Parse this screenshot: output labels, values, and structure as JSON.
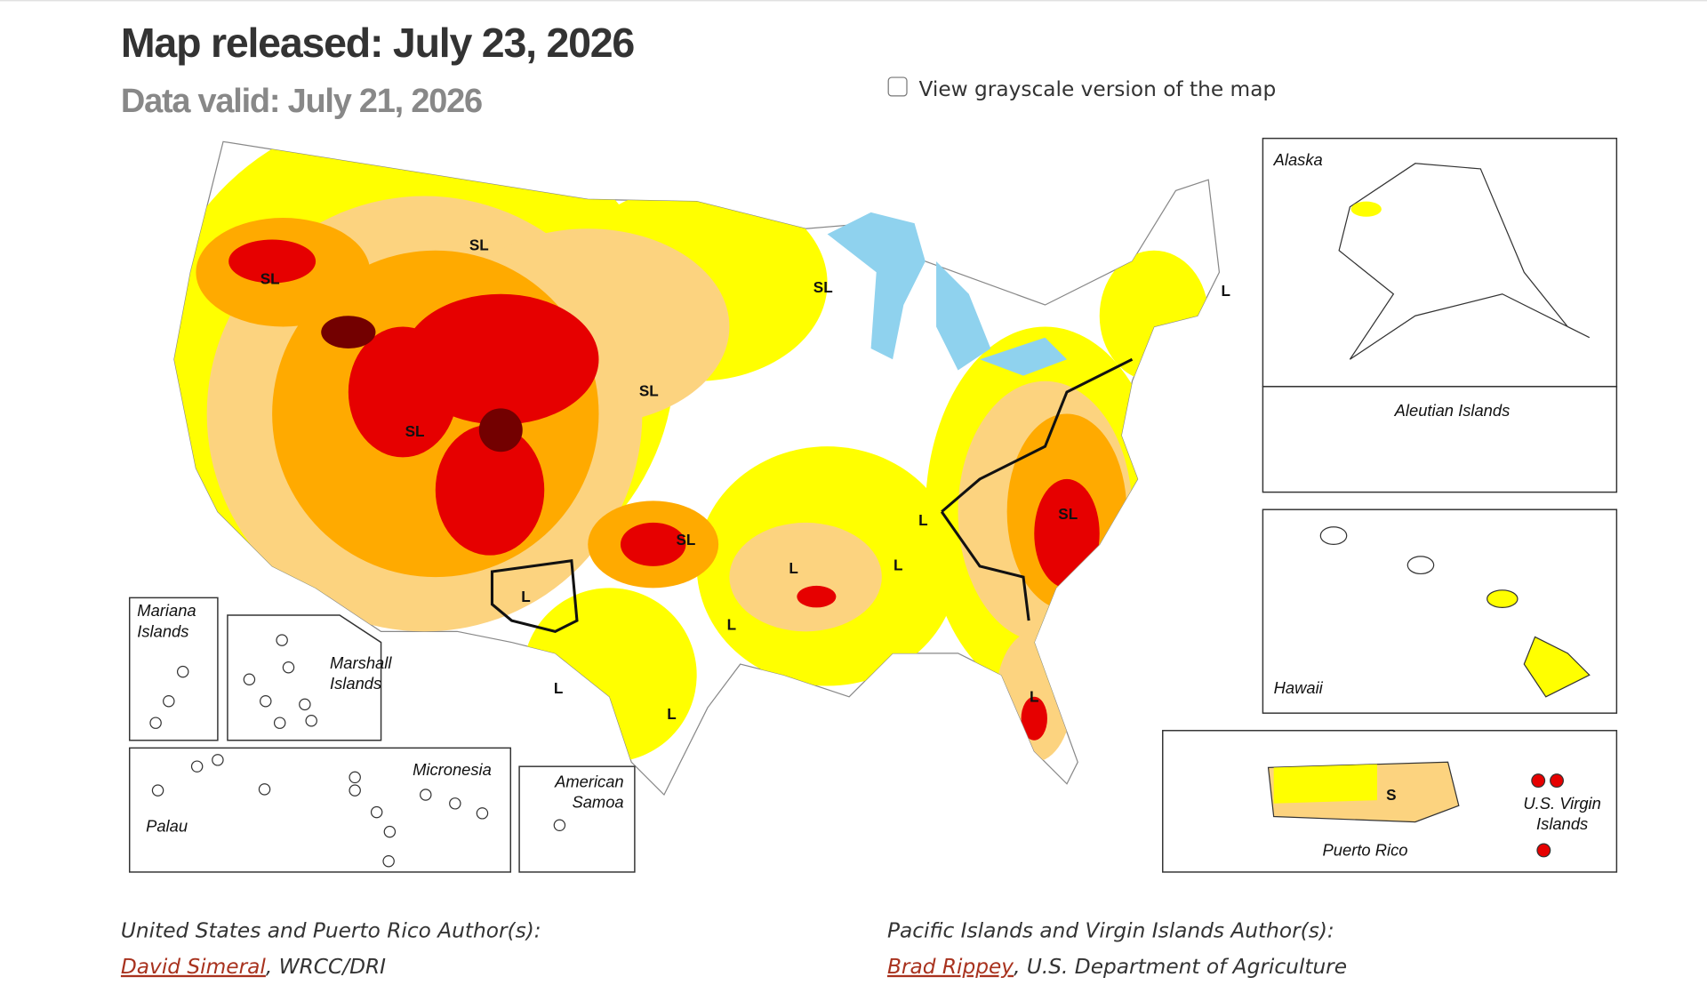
{
  "header": {
    "title": "Map released: July 23, 2026",
    "subtitle": "Data valid: July 21, 2026"
  },
  "grayscale_toggle": {
    "label": "View grayscale version of the map",
    "checked": false
  },
  "map": {
    "insets": {
      "alaska": "Alaska",
      "aleutian": "Aleutian Islands",
      "hawaii": "Hawaii",
      "mariana": [
        "Mariana",
        "Islands"
      ],
      "marshall": [
        "Marshall",
        "Islands"
      ],
      "micronesia": "Micronesia",
      "palau": "Palau",
      "samoa": [
        "American",
        "Samoa"
      ],
      "puerto_rico": "Puerto Rico",
      "virgin": [
        "U.S. Virgin",
        "Islands"
      ]
    },
    "impact_labels": [
      "SL",
      "SL",
      "SL",
      "SL",
      "SL",
      "SL",
      "SL",
      "L",
      "L",
      "L",
      "L",
      "L",
      "L",
      "L",
      "L",
      "L",
      "S"
    ]
  },
  "authors": [
    {
      "heading": "United States and Puerto Rico Author(s):",
      "name": "David Simeral",
      "affiliation": ", WRCC/DRI"
    },
    {
      "heading": "Pacific Islands and Virgin Islands Author(s):",
      "name": "Brad Rippey",
      "affiliation": ", U.S. Department of Agriculture"
    }
  ]
}
